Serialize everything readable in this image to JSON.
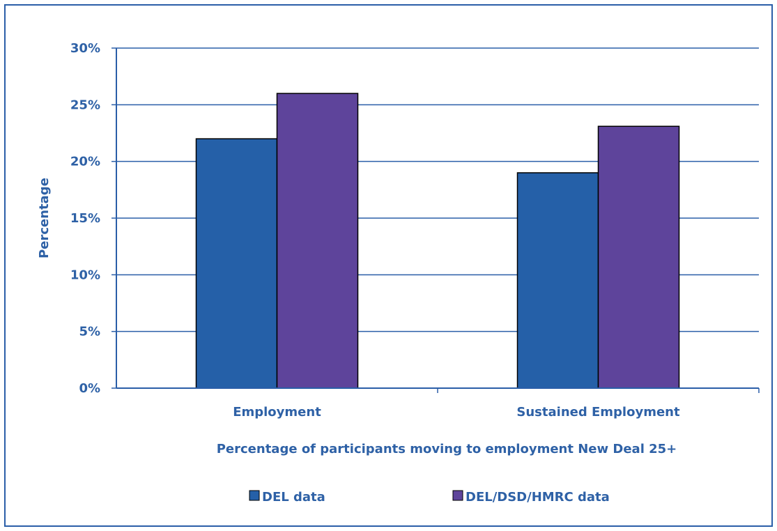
{
  "chart_data": {
    "type": "bar",
    "categories": [
      "Employment",
      "Sustained Employment"
    ],
    "series": [
      {
        "name": "DEL data",
        "values": [
          22,
          19
        ],
        "color": "#2560a8"
      },
      {
        "name": "DEL/DSD/HMRC data",
        "values": [
          26,
          23.1
        ],
        "color": "#5e449b"
      }
    ],
    "ylim": [
      0,
      30
    ],
    "ytick_step": 5,
    "ytick_format": "percent",
    "ylabel": "Percentage",
    "xlabel": "Percentage of participants moving to employment New Deal 25+",
    "grid": true,
    "legend_position": "bottom",
    "colors": {
      "axis": "#2a5ea8",
      "text": "#2e61a6",
      "bar_outline": "#000000"
    }
  }
}
